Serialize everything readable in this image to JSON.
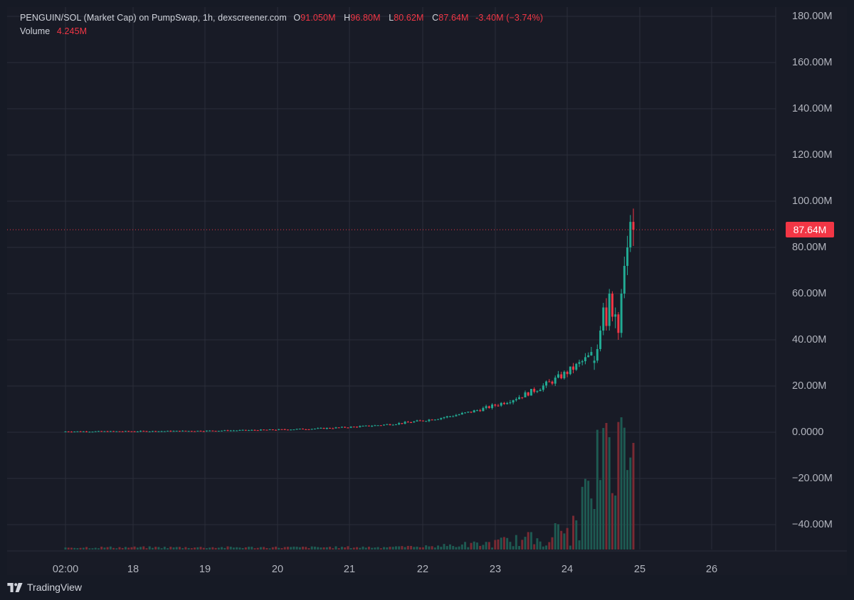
{
  "header": {
    "title": "PENGUIN/SOL (Market Cap) on PumpSwap, 1h, dexscreener.com",
    "open_key": "O",
    "open": "91.050M",
    "high_key": "H",
    "high": "96.80M",
    "low_key": "L",
    "low": "80.62M",
    "close_key": "C",
    "close": "87.64M",
    "change": "-3.40M (−3.74%)",
    "volume_label": "Volume",
    "volume_value": "4.245M"
  },
  "price_axis": {
    "ticks": [
      "180.00M",
      "160.00M",
      "140.00M",
      "120.00M",
      "100.00M",
      "80.00M",
      "60.00M",
      "40.00M",
      "20.00M",
      "0.0000",
      "−20.00M",
      "−40.00M"
    ]
  },
  "time_axis": {
    "ticks": [
      "02:00",
      "18",
      "19",
      "20",
      "21",
      "22",
      "23",
      "24",
      "25",
      "26"
    ]
  },
  "last_price": {
    "label": "87.64M",
    "value": 87.64
  },
  "brand": {
    "name": "TradingView",
    "icon": "tradingview-logo-icon"
  },
  "colors": {
    "up": "#22ab94",
    "down": "#f23645",
    "volume_up": "#1e5a52",
    "volume_down": "#7a2a33",
    "grid": "#2a2e39",
    "background": "#181b26"
  },
  "chart_data": {
    "type": "candlestick",
    "title": "PENGUIN/SOL (Market Cap) on PumpSwap, 1h, dexscreener.com",
    "units": "M",
    "y_range": [
      -52,
      180
    ],
    "x_labels": [
      "02:00",
      "18",
      "19",
      "20",
      "21",
      "22",
      "23",
      "24",
      "25",
      "26"
    ],
    "candles": [
      {
        "t": "24 15:00",
        "o": 30,
        "h": 33,
        "l": 27,
        "c": 31
      },
      {
        "t": "24 16:00",
        "o": 31,
        "h": 38,
        "l": 30,
        "c": 36
      },
      {
        "t": "24 17:00",
        "o": 36,
        "h": 46,
        "l": 35,
        "c": 44
      },
      {
        "t": "24 18:00",
        "o": 44,
        "h": 56,
        "l": 42,
        "c": 54
      },
      {
        "t": "24 19:00",
        "o": 54,
        "h": 58,
        "l": 44,
        "c": 46
      },
      {
        "t": "24 20:00",
        "o": 46,
        "h": 62,
        "l": 44,
        "c": 60
      },
      {
        "t": "24 21:00",
        "o": 60,
        "h": 61,
        "l": 48,
        "c": 50
      },
      {
        "t": "24 22:00",
        "o": 50,
        "h": 54,
        "l": 45,
        "c": 51
      },
      {
        "t": "24 23:00",
        "o": 51,
        "h": 52,
        "l": 40,
        "c": 43
      },
      {
        "t": "25 00:00",
        "o": 43,
        "h": 62,
        "l": 41,
        "c": 60
      },
      {
        "t": "25 01:00",
        "o": 60,
        "h": 76,
        "l": 58,
        "c": 72
      },
      {
        "t": "25 02:00",
        "o": 72,
        "h": 85,
        "l": 68,
        "c": 80
      },
      {
        "t": "25 03:00",
        "o": 80,
        "h": 94,
        "l": 78,
        "c": 91.05
      },
      {
        "t": "25 04:00",
        "o": 91.05,
        "h": 96.8,
        "l": 80.62,
        "c": 87.64
      }
    ],
    "volume_peaks": [
      {
        "t": "24 20:00",
        "v": "high"
      },
      {
        "t": "25 04:00",
        "v": "4.245M"
      }
    ]
  }
}
